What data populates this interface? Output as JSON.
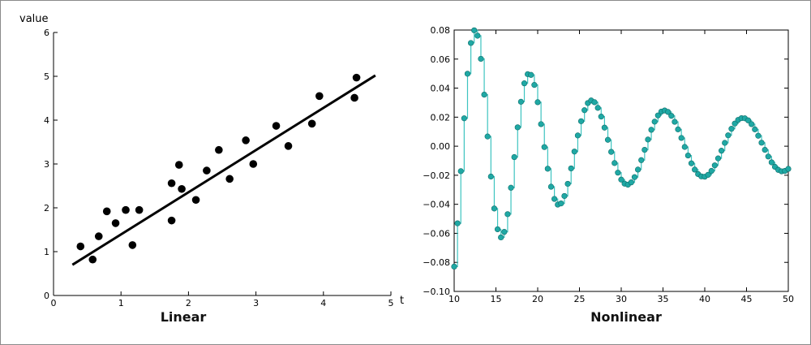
{
  "chart_data": [
    {
      "type": "scatter",
      "title": "Linear",
      "xlabel": "t",
      "ylabel": "value",
      "xlim": [
        0,
        5
      ],
      "ylim": [
        0,
        6
      ],
      "x_ticks": [
        "0",
        "1",
        "2",
        "3",
        "4",
        "5"
      ],
      "y_ticks": [
        "0",
        "1",
        "2",
        "3",
        "4",
        "5",
        "6"
      ],
      "grid": false,
      "series": [
        {
          "kind": "points",
          "color": "#000000",
          "points": [
            [
              0.4,
              1.12
            ],
            [
              0.58,
              0.82
            ],
            [
              0.67,
              1.35
            ],
            [
              0.79,
              1.92
            ],
            [
              0.92,
              1.65
            ],
            [
              1.07,
              1.95
            ],
            [
              1.17,
              1.15
            ],
            [
              1.27,
              1.95
            ],
            [
              1.75,
              2.56
            ],
            [
              1.75,
              1.71
            ],
            [
              1.86,
              2.98
            ],
            [
              1.9,
              2.43
            ],
            [
              2.11,
              2.18
            ],
            [
              2.27,
              2.85
            ],
            [
              2.45,
              3.32
            ],
            [
              2.61,
              2.66
            ],
            [
              2.85,
              3.54
            ],
            [
              2.96,
              3.0
            ],
            [
              3.3,
              3.87
            ],
            [
              3.48,
              3.41
            ],
            [
              3.83,
              3.92
            ],
            [
              3.94,
              4.55
            ],
            [
              4.46,
              4.51
            ],
            [
              4.49,
              4.97
            ]
          ]
        },
        {
          "kind": "line",
          "color": "#000000",
          "points": [
            [
              0.28,
              0.7
            ],
            [
              4.77,
              5.02
            ]
          ]
        }
      ]
    },
    {
      "type": "line",
      "title": "Nonlinear",
      "xlabel": "",
      "ylabel": "",
      "xlim": [
        10,
        50
      ],
      "ylim": [
        -0.1,
        0.08
      ],
      "x_ticks": [
        "10",
        "15",
        "20",
        "25",
        "30",
        "35",
        "40",
        "45",
        "50"
      ],
      "y_ticks": [
        "0.08",
        "0.06",
        "0.04",
        "0.02",
        "0.00",
        "−0.02",
        "−0.04",
        "−0.06",
        "−0.08",
        "−0.10"
      ],
      "grid": false,
      "line_style": "steps",
      "series": [
        {
          "color": "#3dc4c0",
          "marker_color": "#1fa8a4",
          "x_start": 10,
          "x_step": 0.4,
          "values": [
            -0.0829,
            -0.0531,
            -0.0172,
            0.0192,
            0.0499,
            0.0711,
            0.0798,
            0.0761,
            0.0602,
            0.0355,
            0.0067,
            -0.0209,
            -0.0429,
            -0.0572,
            -0.0628,
            -0.059,
            -0.0468,
            -0.0286,
            -0.0075,
            0.013,
            0.0306,
            0.0433,
            0.0496,
            0.0491,
            0.0422,
            0.0303,
            0.0152,
            -0.0006,
            -0.0155,
            -0.0279,
            -0.0363,
            -0.0402,
            -0.0394,
            -0.0343,
            -0.0259,
            -0.0153,
            -0.0037,
            0.0074,
            0.0172,
            0.0248,
            0.0297,
            0.0315,
            0.0303,
            0.0264,
            0.0204,
            0.0128,
            0.0044,
            -0.0039,
            -0.0116,
            -0.0182,
            -0.023,
            -0.0258,
            -0.0265,
            -0.0249,
            -0.0213,
            -0.0161,
            -0.0096,
            -0.0025,
            0.0046,
            0.0113,
            0.0169,
            0.0212,
            0.0238,
            0.0246,
            0.0236,
            0.0209,
            0.0168,
            0.0116,
            0.0057,
            -0.0005,
            -0.0064,
            -0.0118,
            -0.0161,
            -0.0192,
            -0.0208,
            -0.021,
            -0.0197,
            -0.017,
            -0.0132,
            -0.0084,
            -0.0031,
            0.0023,
            0.0075,
            0.012,
            0.0156,
            0.0181,
            0.0193,
            0.0192,
            0.0178,
            0.0152,
            0.0116,
            0.0072,
            0.0024,
            -0.0025,
            -0.0071,
            -0.0111,
            -0.0142,
            -0.0163,
            -0.0173,
            -0.017,
            -0.0156
          ]
        }
      ]
    }
  ]
}
